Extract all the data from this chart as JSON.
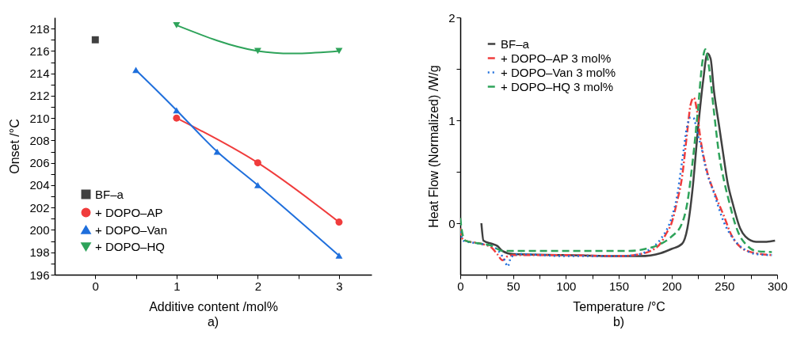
{
  "chart_data": [
    {
      "type": "line",
      "xlabel": "Additive content /mol%",
      "ylabel": "Onset /°C",
      "annotations": [
        "a)"
      ],
      "xlim": [
        -0.5,
        3.4
      ],
      "xticks": [
        0,
        {
          "value": 0.5,
          "label": null
        },
        1,
        {
          "value": 1.5,
          "label": null
        },
        2,
        {
          "value": 2.5,
          "label": null
        },
        3
      ],
      "ylim": [
        196,
        219
      ],
      "yticks": [
        196,
        {
          "value": 197,
          "label": null
        },
        198,
        {
          "value": 199,
          "label": null
        },
        200,
        {
          "value": 201,
          "label": null
        },
        202,
        {
          "value": 203,
          "label": null
        },
        204,
        {
          "value": 205,
          "label": null
        },
        206,
        {
          "value": 207,
          "label": null
        },
        208,
        {
          "value": 209,
          "label": null
        },
        210,
        {
          "value": 211,
          "label": null
        },
        212,
        {
          "value": 213,
          "label": null
        },
        214,
        {
          "value": 215,
          "label": null
        },
        216,
        {
          "value": 217,
          "label": null
        },
        218
      ],
      "grid": false,
      "legend": "bottom left",
      "series": [
        {
          "name": "BF–a",
          "type": "scatter",
          "marker": "square",
          "color": "#404040",
          "x": [
            0
          ],
          "values": [
            217
          ]
        },
        {
          "name": "+ DOPO–AP",
          "type": "line",
          "marker": "circle",
          "color": "#f03c3c",
          "x": [
            1,
            2,
            3
          ],
          "values": [
            210,
            206,
            200.7
          ]
        },
        {
          "name": "+ DOPO–Van",
          "type": "line",
          "marker": "triangle",
          "color": "#1f6fdc",
          "x": [
            0.5,
            1,
            1.5,
            2,
            3
          ],
          "values": [
            214.3,
            210.7,
            207,
            204,
            197.7
          ]
        },
        {
          "name": "+ DOPO–HQ",
          "type": "line",
          "marker": "triangle-down",
          "color": "#2ea35a",
          "x": [
            1,
            2,
            3
          ],
          "values": [
            218.3,
            216,
            216
          ]
        }
      ]
    },
    {
      "type": "line",
      "xlabel": "Temperature /°C",
      "ylabel": "Heat Flow (Normalized) /W/g",
      "annotations": [
        "b)"
      ],
      "xlim": [
        0,
        300
      ],
      "xticks": [
        0,
        {
          "value": 25,
          "label": null
        },
        50,
        {
          "value": 75,
          "label": null
        },
        100,
        {
          "value": 125,
          "label": null
        },
        150,
        {
          "value": 175,
          "label": null
        },
        200,
        {
          "value": 225,
          "label": null
        },
        250,
        {
          "value": 275,
          "label": null
        },
        300
      ],
      "ylim": [
        -0.5,
        2
      ],
      "yticks": [
        0,
        {
          "value": 0.5,
          "label": null
        },
        1,
        {
          "value": 1.5,
          "label": null
        },
        2
      ],
      "grid": false,
      "legend": "top left",
      "marker": "none",
      "series": [
        {
          "name": "BF–a",
          "color": "#404040",
          "line_style": "solid",
          "x": [
            20,
            22,
            30,
            35,
            40,
            50,
            100,
            150,
            170,
            190,
            200,
            210,
            215,
            220,
            225,
            230,
            234,
            237,
            240,
            245,
            249,
            253,
            258,
            265,
            270,
            280,
            290,
            298
          ],
          "values": [
            0,
            -0.17,
            -0.2,
            -0.22,
            -0.27,
            -0.3,
            -0.31,
            -0.32,
            -0.32,
            -0.29,
            -0.25,
            -0.2,
            -0.05,
            0.34,
            0.91,
            1.39,
            1.65,
            1.6,
            1.3,
            0.95,
            0.67,
            0.4,
            0.19,
            -0.05,
            -0.13,
            -0.18,
            -0.18,
            -0.17
          ]
        },
        {
          "name": "+ DOPO–AP 3 mol%",
          "color": "#f03c3c",
          "line_style": "dashdot",
          "x": [
            0,
            2,
            5,
            20,
            30,
            35,
            40,
            45,
            50,
            100,
            150,
            170,
            180,
            190,
            195,
            200,
            205,
            210,
            215,
            218,
            221,
            224,
            227,
            233,
            242,
            250,
            256,
            265,
            275,
            285,
            295
          ],
          "values": [
            -0.05,
            -0.15,
            -0.17,
            -0.2,
            -0.24,
            -0.3,
            -0.36,
            -0.32,
            -0.31,
            -0.31,
            -0.32,
            -0.3,
            -0.27,
            -0.19,
            -0.1,
            0.0,
            0.2,
            0.45,
            0.9,
            1.15,
            1.22,
            1.1,
            0.85,
            0.53,
            0.26,
            0.06,
            -0.1,
            -0.23,
            -0.28,
            -0.3,
            -0.31
          ]
        },
        {
          "name": "+ DOPO–Van 3 mol%",
          "color": "#1f6fdc",
          "line_style": "dotted",
          "x": [
            0,
            3,
            20,
            30,
            37,
            42,
            45,
            48,
            55,
            100,
            150,
            170,
            180,
            190,
            200,
            205,
            210,
            215,
            218,
            221,
            225,
            228,
            232,
            240,
            250,
            260,
            270,
            280,
            295
          ],
          "values": [
            -0.08,
            -0.17,
            -0.2,
            -0.22,
            -0.28,
            -0.36,
            -0.42,
            -0.33,
            -0.3,
            -0.32,
            -0.32,
            -0.3,
            -0.25,
            -0.15,
            0.05,
            0.25,
            0.6,
            0.95,
            1.03,
            1.02,
            0.85,
            0.75,
            0.55,
            0.3,
            0.0,
            -0.17,
            -0.26,
            -0.3,
            -0.31
          ]
        },
        {
          "name": "+ DOPO–HQ 3 mol%",
          "color": "#2ea35a",
          "line_style": "dashed",
          "x": [
            0,
            2,
            5,
            20,
            30,
            35,
            40,
            50,
            100,
            160,
            175,
            190,
            200,
            210,
            215,
            220,
            225,
            229,
            232,
            235,
            240,
            245,
            250,
            255,
            260,
            265,
            270,
            280,
            295
          ],
          "values": [
            0.05,
            -0.1,
            -0.17,
            -0.2,
            -0.22,
            -0.25,
            -0.27,
            -0.27,
            -0.27,
            -0.27,
            -0.25,
            -0.2,
            -0.13,
            0.0,
            0.2,
            0.6,
            1.1,
            1.55,
            1.69,
            1.55,
            1.1,
            0.67,
            0.4,
            0.19,
            0.0,
            -0.13,
            -0.2,
            -0.27,
            -0.28
          ]
        }
      ]
    }
  ]
}
